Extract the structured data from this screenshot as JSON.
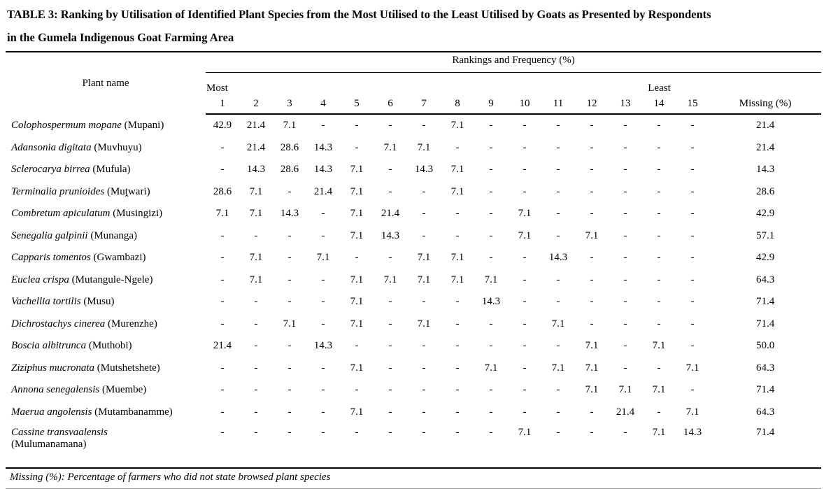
{
  "title": {
    "line1": "TABLE 3: Ranking by Utilisation of Identified Plant Species from the Most Utilised to the Least Utilised by Goats as Presented by Respondents",
    "line2": "in the Gumela Indigenous Goat Farming Area"
  },
  "table": {
    "plant_name_header": "Plant name",
    "group_header": "Rankings and Frequency (%)",
    "most_label": "Most",
    "least_label": "Least",
    "rank_columns": [
      "1",
      "2",
      "3",
      "4",
      "5",
      "6",
      "7",
      "8",
      "9",
      "10",
      "11",
      "12",
      "13",
      "14",
      "15"
    ],
    "missing_header": "Missing (%)",
    "rows": [
      {
        "species": "Colophospermum mopane",
        "common": "(Mupani)",
        "wrap": false,
        "values": [
          "42.9",
          "21.4",
          "7.1",
          "-",
          "-",
          "-",
          "-",
          "7.1",
          "-",
          "-",
          "-",
          "-",
          "-",
          "-",
          "-"
        ],
        "missing": "21.4"
      },
      {
        "species": "Adansonia digitata",
        "common": "(Muvhuyu)",
        "wrap": false,
        "values": [
          "-",
          "21.4",
          "28.6",
          "14.3",
          "-",
          "7.1",
          "7.1",
          "-",
          "-",
          "-",
          "-",
          "-",
          "-",
          "-",
          "-"
        ],
        "missing": "21.4"
      },
      {
        "species": "Sclerocarya birrea",
        "common": "(Mufula)",
        "wrap": false,
        "values": [
          "-",
          "14.3",
          "28.6",
          "14.3",
          "7.1",
          "-",
          "14.3",
          "7.1",
          "-",
          "-",
          "-",
          "-",
          "-",
          "-",
          "-"
        ],
        "missing": "14.3"
      },
      {
        "species": "Terminalia prunioides",
        "common": "(Muṱwari)",
        "wrap": false,
        "values": [
          "28.6",
          "7.1",
          "-",
          "21.4",
          "7.1",
          "-",
          "-",
          "7.1",
          "-",
          "-",
          "-",
          "-",
          "-",
          "-",
          "-"
        ],
        "missing": "28.6"
      },
      {
        "species": "Combretum apiculatum",
        "common": "(Musingizi)",
        "wrap": false,
        "values": [
          "7.1",
          "7.1",
          "14.3",
          "-",
          "7.1",
          "21.4",
          "-",
          "-",
          "-",
          "7.1",
          "-",
          "-",
          "-",
          "-",
          "-"
        ],
        "missing": "42.9"
      },
      {
        "species": "Senegalia galpinii",
        "common": "(Munanga)",
        "wrap": false,
        "values": [
          "-",
          "-",
          "-",
          "-",
          "7.1",
          "14.3",
          "-",
          "-",
          "-",
          "7.1",
          "-",
          "7.1",
          "-",
          "-",
          "-"
        ],
        "missing": "57.1"
      },
      {
        "species": "Capparis tomentos",
        "common": "(Gwambazi)",
        "wrap": false,
        "values": [
          "-",
          "7.1",
          "-",
          "7.1",
          "-",
          "-",
          "7.1",
          "7.1",
          "-",
          "-",
          "14.3",
          "-",
          "-",
          "-",
          "-"
        ],
        "missing": "42.9"
      },
      {
        "species": "Euclea crispa",
        "common": "(Mutangule-Ngele)",
        "wrap": false,
        "values": [
          "-",
          "7.1",
          "-",
          "-",
          "7.1",
          "7.1",
          "7.1",
          "7.1",
          "7.1",
          "-",
          "-",
          "-",
          "-",
          "-",
          "-"
        ],
        "missing": "64.3"
      },
      {
        "species": "Vachellia tortilis",
        "common": "(Musu)",
        "wrap": false,
        "values": [
          "-",
          "-",
          "-",
          "-",
          "7.1",
          "-",
          "-",
          "-",
          "14.3",
          "-",
          "-",
          "-",
          "-",
          "-",
          "-"
        ],
        "missing": "71.4"
      },
      {
        "species": "Dichrostachys cinerea",
        "common": "(Murenzhe)",
        "wrap": false,
        "values": [
          "-",
          "-",
          "7.1",
          "-",
          "7.1",
          "-",
          "7.1",
          "-",
          "-",
          "-",
          "7.1",
          "-",
          "-",
          "-",
          "-"
        ],
        "missing": "71.4"
      },
      {
        "species": "Boscia albitrunca",
        "common": "(Muthobi)",
        "wrap": false,
        "values": [
          "21.4",
          "-",
          "-",
          "14.3",
          "-",
          "-",
          "-",
          "-",
          "-",
          "-",
          "-",
          "7.1",
          "-",
          "7.1",
          "-"
        ],
        "missing": "50.0"
      },
      {
        "species": "Ziziphus mucronata",
        "common": "(Mutshetshete)",
        "wrap": false,
        "values": [
          "-",
          "-",
          "-",
          "-",
          "7.1",
          "-",
          "-",
          "-",
          "7.1",
          "-",
          "7.1",
          "7.1",
          "-",
          "-",
          "7.1"
        ],
        "missing": "64.3"
      },
      {
        "species": "Annona senegalensis",
        "common": "(Muembe)",
        "wrap": false,
        "values": [
          "-",
          "-",
          "-",
          "-",
          "-",
          "-",
          "-",
          "-",
          "-",
          "-",
          "-",
          "7.1",
          "7.1",
          "7.1",
          "-"
        ],
        "missing": "71.4"
      },
      {
        "species": "Maerua angolensis",
        "common": "(Mutambanamme)",
        "wrap": false,
        "values": [
          "-",
          "-",
          "-",
          "-",
          "7.1",
          "-",
          "-",
          "-",
          "-",
          "-",
          "-",
          "-",
          "21.4",
          "-",
          "7.1"
        ],
        "missing": "64.3"
      },
      {
        "species": "Cassine transvaalensis",
        "common": "(Mulumanamana)",
        "wrap": true,
        "values": [
          "-",
          "-",
          "-",
          "-",
          "-",
          "-",
          "-",
          "-",
          "-",
          "7.1",
          "-",
          "-",
          "-",
          "7.1",
          "14.3"
        ],
        "missing": "71.4"
      }
    ]
  },
  "footnote": "Missing (%): Percentage of farmers who did not state browsed plant species"
}
